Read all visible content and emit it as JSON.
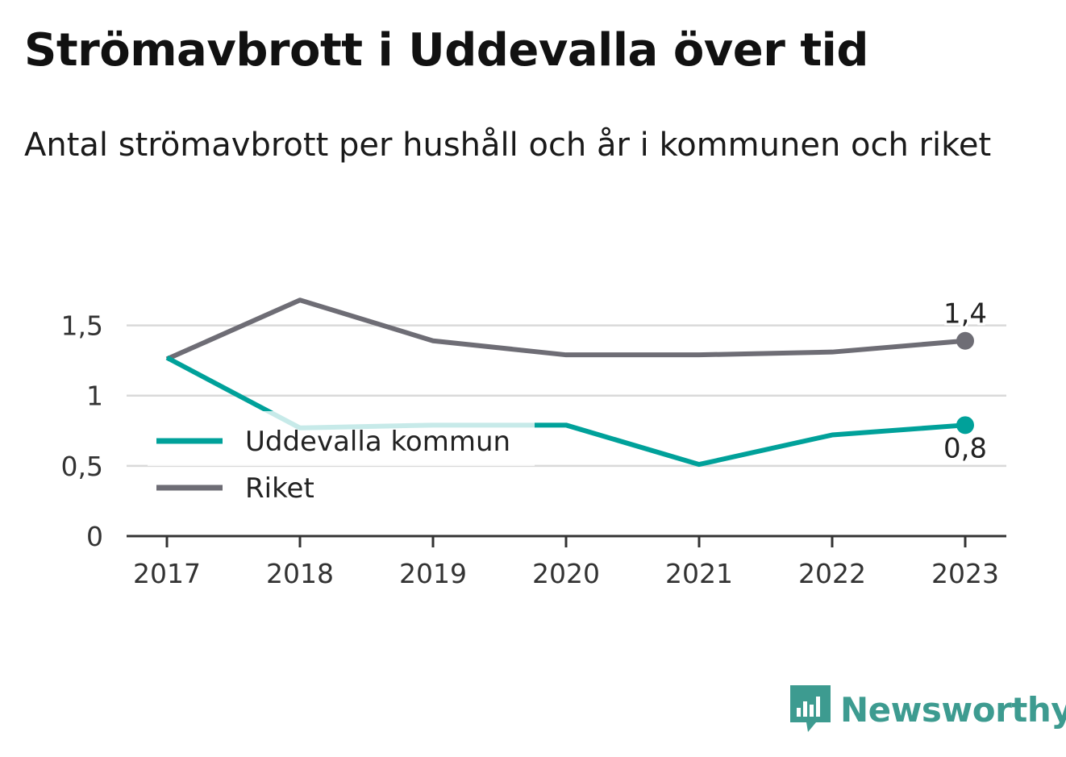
{
  "title": "Strömavbrott i Uddevalla över tid",
  "subtitle": "Antal strömavbrott per hushåll och år i kommunen och riket",
  "colors": {
    "uddevalla": "#00a19a",
    "riket": "#6e6d75",
    "grid": "#d9d9d9",
    "axis": "#333333",
    "brand": "#3d9b90"
  },
  "chart_data": {
    "type": "line",
    "categories": [
      "2017",
      "2018",
      "2019",
      "2020",
      "2021",
      "2022",
      "2023"
    ],
    "series": [
      {
        "name": "Uddevalla kommun",
        "color": "#00a19a",
        "values": [
          1.27,
          0.77,
          0.79,
          0.79,
          0.51,
          0.72,
          0.79
        ]
      },
      {
        "name": "Riket",
        "color": "#6e6d75",
        "values": [
          1.26,
          1.68,
          1.39,
          1.29,
          1.29,
          1.31,
          1.39
        ]
      }
    ],
    "ylim": [
      0,
      1.75
    ],
    "yticks": [
      0,
      0.5,
      1,
      1.5
    ],
    "ytick_labels": [
      "0",
      "0,5",
      "1",
      "1,5"
    ],
    "end_labels": {
      "Uddevalla kommun": "0,8",
      "Riket": "1,4"
    },
    "grid": true,
    "legend_position": "bottom-left"
  },
  "brand": {
    "name": "Newsworthy",
    "icon": "bar-chart-speech-bubble-icon"
  }
}
